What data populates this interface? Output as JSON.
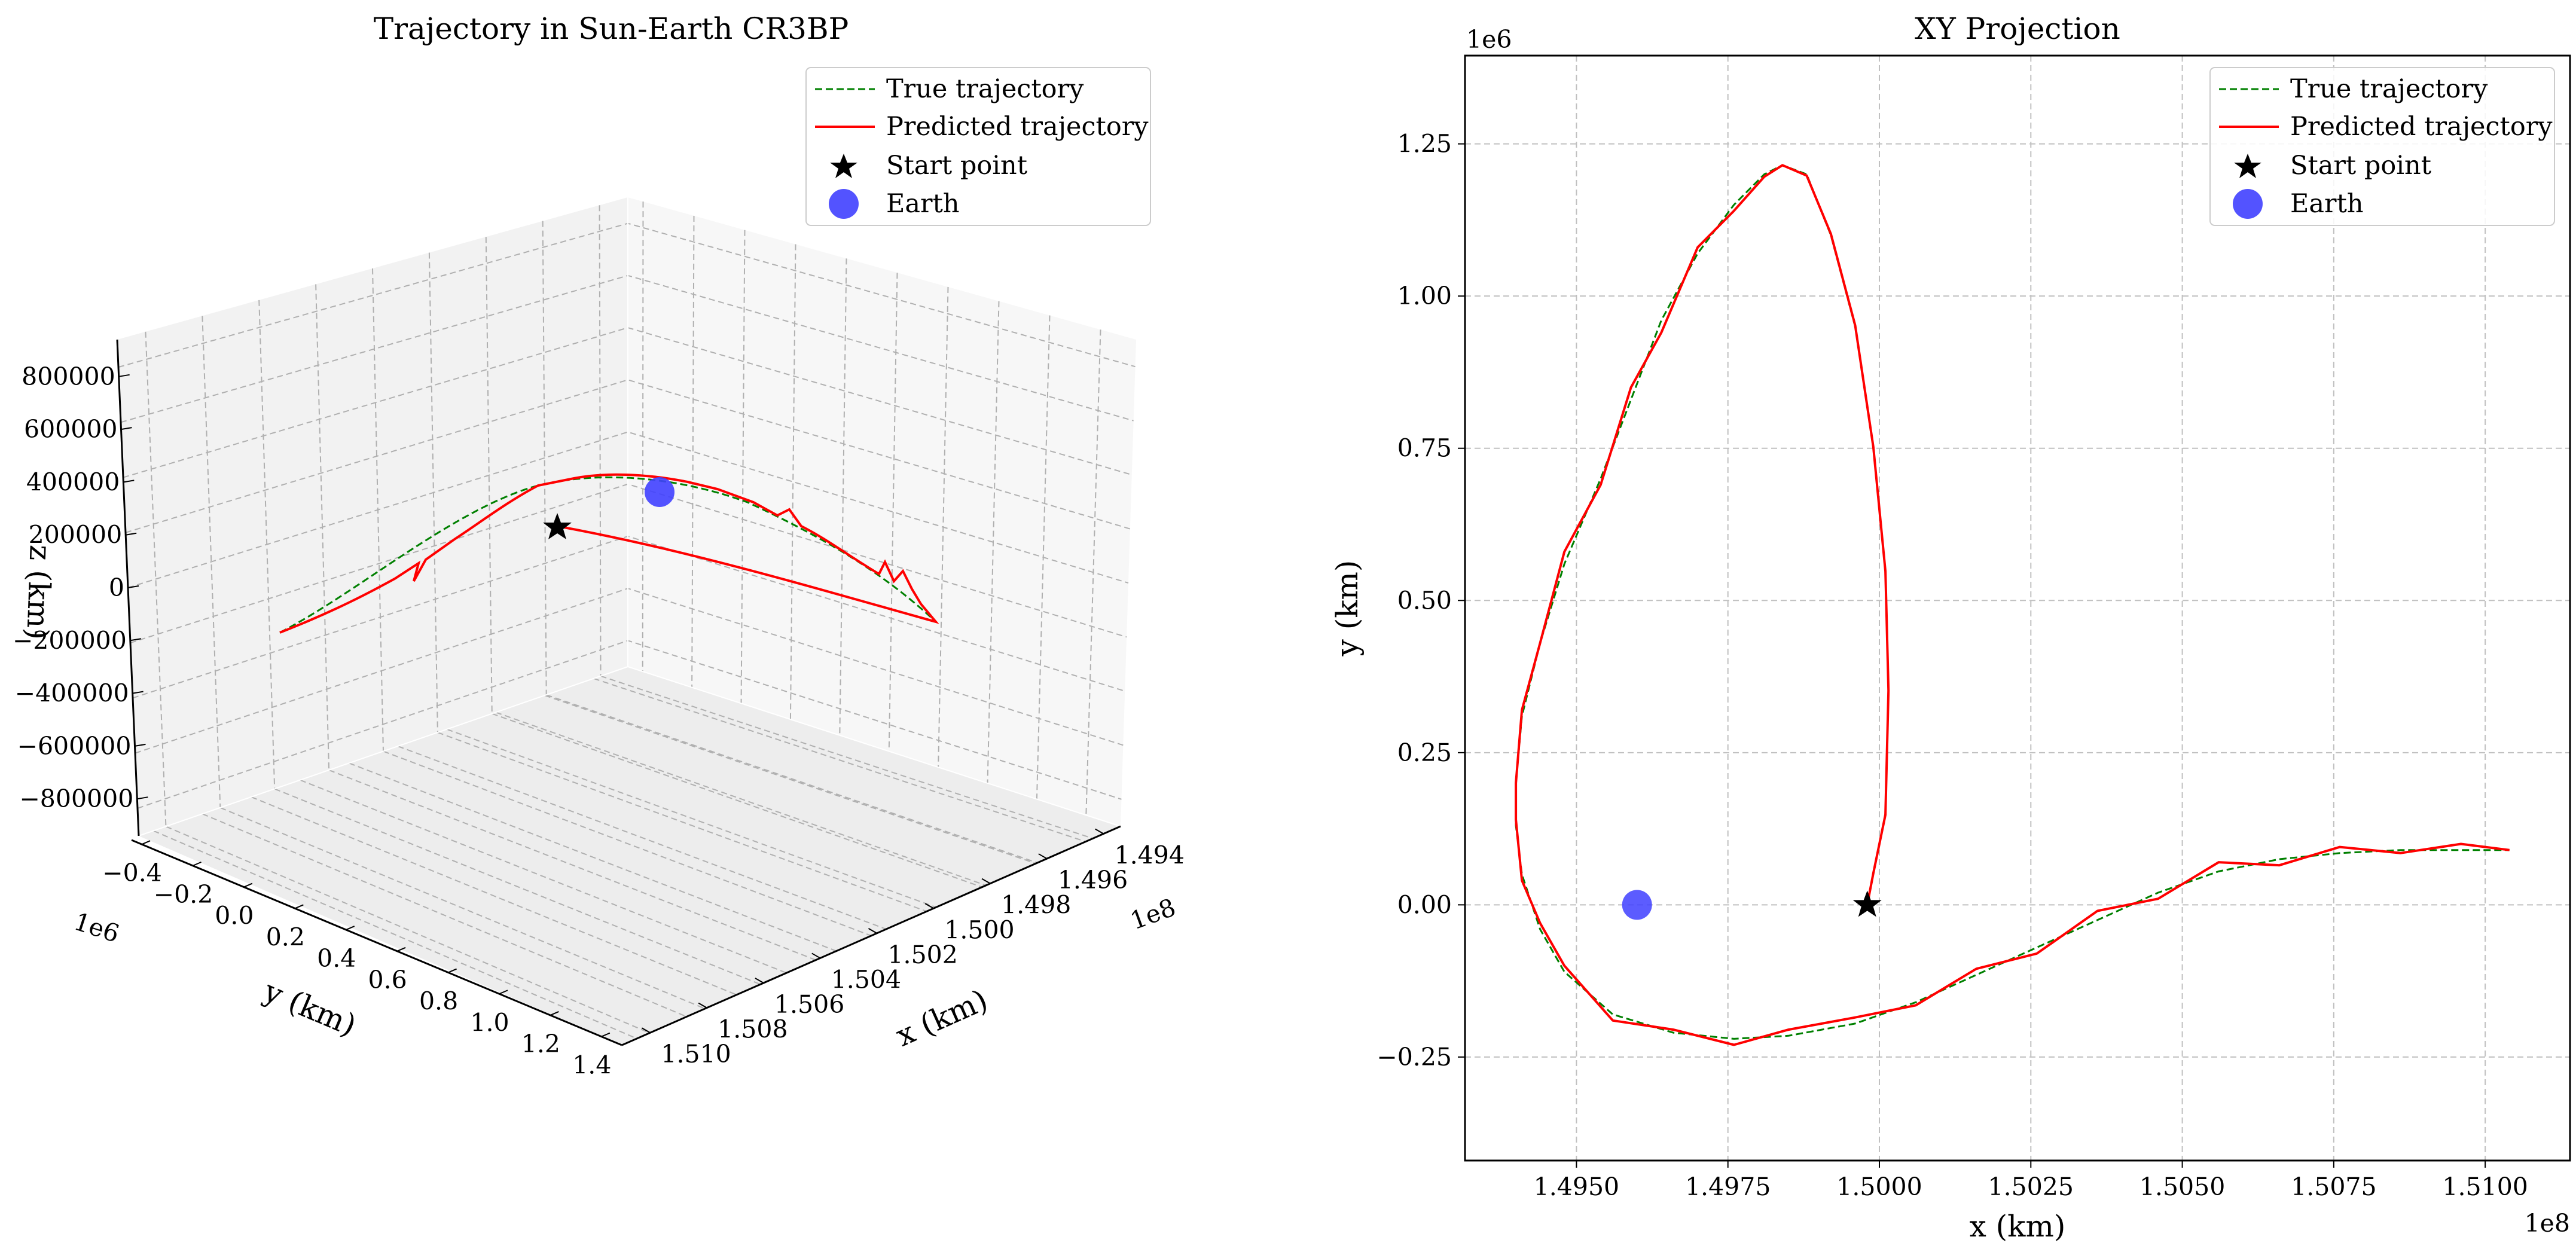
{
  "chart_data": [
    {
      "type": "line3d",
      "title": "Trajectory in Sun-Earth CR3BP",
      "xlabel": "x (km)",
      "ylabel": "y (km)",
      "zlabel": "z (km)",
      "x_offset": "1e8",
      "y_offset": "1e6",
      "xticks": [
        "1.494",
        "1.496",
        "1.498",
        "1.500",
        "1.502",
        "1.504",
        "1.506",
        "1.508",
        "1.510"
      ],
      "yticks": [
        "−0.4",
        "−0.2",
        "0.0",
        "0.2",
        "0.4",
        "0.6",
        "0.8",
        "1.0",
        "1.2",
        "1.4"
      ],
      "zticks": [
        "800000",
        "600000",
        "400000",
        "200000",
        "0",
        "−200000",
        "−400000",
        "−600000",
        "−800000"
      ],
      "xlim": [
        149300000,
        151100000
      ],
      "ylim": [
        -400000,
        1400000
      ],
      "zlim": [
        -900000,
        900000
      ],
      "grid": true,
      "legend": {
        "position": "top-right",
        "entries": [
          {
            "label": "True trajectory",
            "style": "dashed",
            "color": "#008000"
          },
          {
            "label": "Predicted trajectory",
            "style": "solid",
            "color": "#ff0000"
          },
          {
            "label": "Start point",
            "style": "star",
            "color": "#000000"
          },
          {
            "label": "Earth",
            "style": "circle",
            "color": "#4040ff"
          }
        ]
      },
      "start_point": {
        "x": 149980000,
        "y": 0,
        "z": 0
      },
      "earth": {
        "x": 149600000,
        "y": 0,
        "z": 0
      }
    },
    {
      "type": "line",
      "title": "XY Projection",
      "xlabel": "x (km)",
      "ylabel": "y (km)",
      "x_offset": "1e8",
      "y_offset": "1e6",
      "xticks": [
        "1.4950",
        "1.4975",
        "1.5000",
        "1.5025",
        "1.5050",
        "1.5075",
        "1.5100"
      ],
      "xtick_values": [
        149500000,
        149750000,
        150000000,
        150250000,
        150500000,
        150750000,
        151000000
      ],
      "yticks": [
        "1.25",
        "1.00",
        "0.75",
        "0.50",
        "0.25",
        "0.00",
        "−0.25"
      ],
      "ytick_values": [
        1250000,
        1000000,
        750000,
        500000,
        250000,
        0,
        -250000
      ],
      "xlim": [
        149316000,
        151140000
      ],
      "ylim": [
        -420000,
        1395000
      ],
      "grid": true,
      "legend": {
        "position": "top-right",
        "entries": [
          {
            "label": "True trajectory",
            "style": "dashed",
            "color": "#008000"
          },
          {
            "label": "Predicted trajectory",
            "style": "solid",
            "color": "#ff0000"
          },
          {
            "label": "Start point",
            "style": "star",
            "color": "#000000"
          },
          {
            "label": "Earth",
            "style": "circle",
            "color": "#4040ff"
          }
        ]
      },
      "series": [
        {
          "name": "True trajectory",
          "x": [
            149980000,
            149990000,
            150010000,
            150015000,
            150010000,
            149990000,
            149960000,
            149920000,
            149880000,
            149840000,
            149810000,
            149760000,
            149700000,
            149640000,
            149590000,
            149540000,
            149480000,
            149440000,
            149410000,
            149400000,
            149400000,
            149410000,
            149440000,
            149480000,
            149560000,
            149660000,
            149760000,
            149850000,
            149960000,
            150060000,
            150160000,
            150260000,
            150360000,
            150460000,
            150560000,
            150660000,
            150760000,
            150860000,
            150960000,
            151040000
          ],
          "y": [
            0,
            50000,
            150000,
            350000,
            550000,
            750000,
            950000,
            1100000,
            1200000,
            1215000,
            1200000,
            1150000,
            1070000,
            960000,
            830000,
            700000,
            560000,
            430000,
            310000,
            200000,
            130000,
            50000,
            -40000,
            -110000,
            -180000,
            -210000,
            -220000,
            -215000,
            -195000,
            -160000,
            -115000,
            -70000,
            -25000,
            20000,
            55000,
            75000,
            85000,
            90000,
            90000,
            90000
          ]
        },
        {
          "name": "Predicted trajectory",
          "x": [
            149980000,
            149990000,
            150010000,
            150015000,
            150010000,
            149990000,
            149960000,
            149920000,
            149880000,
            149840000,
            149810000,
            149760000,
            149700000,
            149640000,
            149590000,
            149540000,
            149480000,
            149440000,
            149410000,
            149400000,
            149400000,
            149410000,
            149440000,
            149480000,
            149560000,
            149660000,
            149760000,
            149850000,
            149960000,
            150060000,
            150160000,
            150260000,
            150360000,
            150460000,
            150560000,
            150660000,
            150760000,
            150860000,
            150960000,
            151040000
          ],
          "y": [
            0,
            52000,
            148000,
            352000,
            548000,
            752000,
            952000,
            1102000,
            1198000,
            1215000,
            1196000,
            1140000,
            1080000,
            940000,
            850000,
            690000,
            580000,
            430000,
            320000,
            200000,
            140000,
            40000,
            -30000,
            -100000,
            -190000,
            -205000,
            -230000,
            -205000,
            -185000,
            -165000,
            -105000,
            -80000,
            -10000,
            10000,
            70000,
            65000,
            95000,
            85000,
            100000,
            90000
          ]
        }
      ],
      "start_point": {
        "x": 149980000,
        "y": 0
      },
      "earth": {
        "x": 149600000,
        "y": 0
      }
    }
  ]
}
